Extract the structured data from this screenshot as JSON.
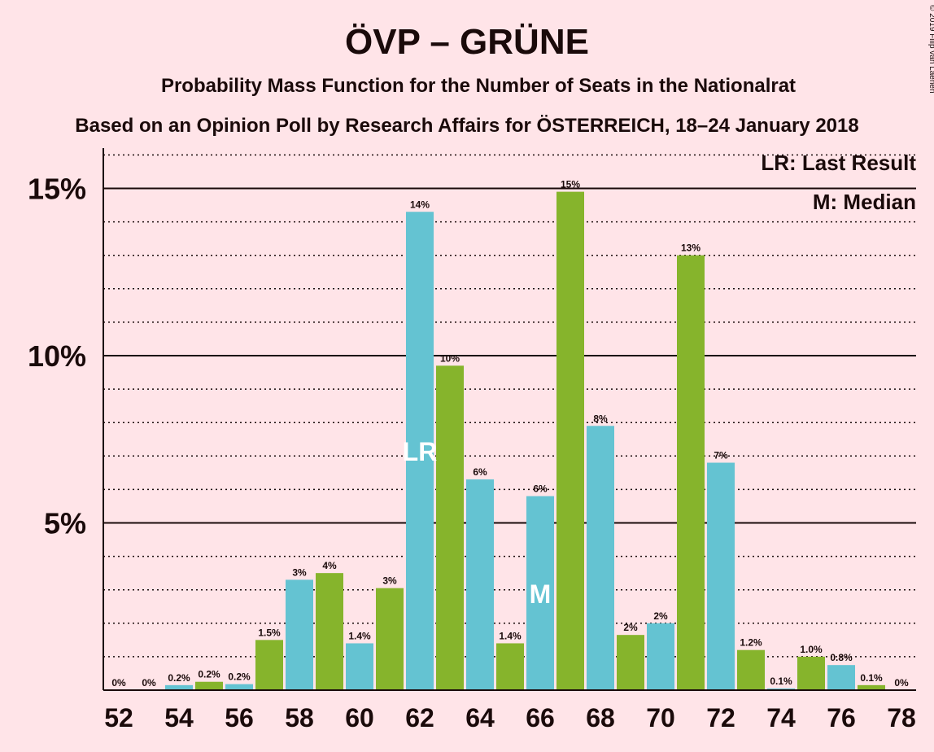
{
  "chart_data": {
    "type": "bar",
    "title": "ÖVP – GRÜNE",
    "subtitle": "Probability Mass Function for the Number of Seats in the Nationalrat",
    "subtitle2": "Based on an Opinion Poll by Research Affairs for ÖSTERREICH, 18–24 January 2018",
    "copyright": "© 2019 Filip van Laenen",
    "legend": [
      "LR: Last Result",
      "M: Median"
    ],
    "legend_position": "top-right",
    "x": [
      52,
      53,
      54,
      55,
      56,
      57,
      58,
      59,
      60,
      61,
      62,
      63,
      64,
      65,
      66,
      67,
      68,
      69,
      70,
      71,
      72,
      73,
      74,
      75,
      76,
      77,
      78
    ],
    "values": [
      0,
      0,
      0.15,
      0.25,
      0.18,
      1.5,
      3.3,
      3.5,
      1.4,
      3.05,
      14.3,
      9.7,
      6.3,
      1.4,
      5.8,
      14.9,
      7.9,
      1.65,
      2.0,
      13.0,
      6.8,
      1.2,
      0.05,
      1.0,
      0.75,
      0.15,
      0
    ],
    "labels": [
      "0%",
      "0%",
      "0.2%",
      "0.2%",
      "0.2%",
      "1.5%",
      "3%",
      "4%",
      "1.4%",
      "3%",
      "14%",
      "10%",
      "6%",
      "1.4%",
      "6%",
      "15%",
      "8%",
      "2%",
      "2%",
      "13%",
      "7%",
      "1.2%",
      "0.1%",
      "1.0%",
      "0.8%",
      "0.1%",
      "0%"
    ],
    "xticks": [
      "52",
      "54",
      "56",
      "58",
      "60",
      "62",
      "64",
      "66",
      "68",
      "70",
      "72",
      "74",
      "76",
      "78"
    ],
    "yticks": [
      "5%",
      "10%",
      "15%"
    ],
    "ylim": [
      0,
      16.2
    ],
    "last_result": {
      "x": 62,
      "label": "LR"
    },
    "median": {
      "x": 66,
      "label": "M"
    },
    "colors": {
      "blue": "#64c3d2",
      "green": "#86b42c",
      "background": "#ffe4e8"
    }
  }
}
